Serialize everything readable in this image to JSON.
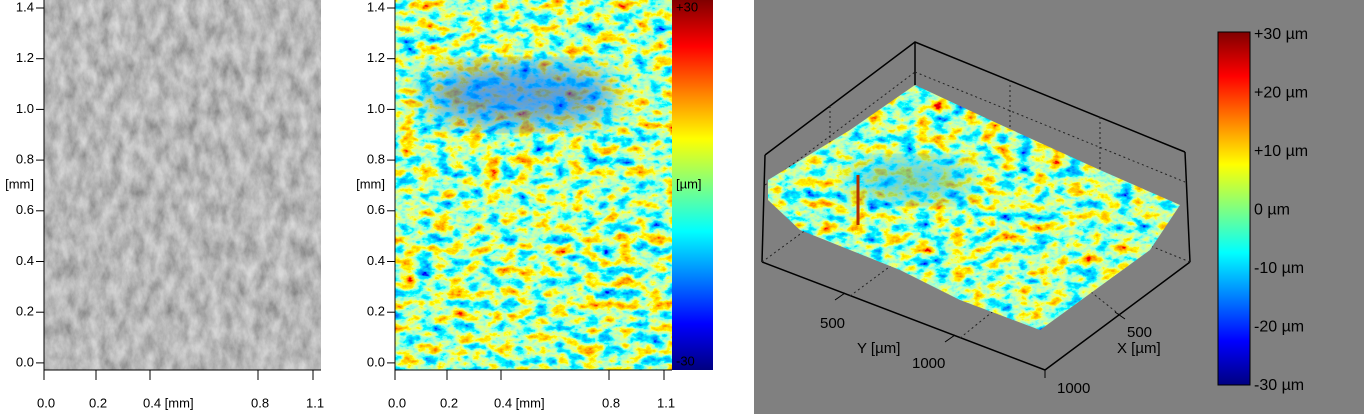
{
  "panels": [
    {
      "y_ticks": [
        "1.4",
        "1.2",
        "1.0",
        "0.8",
        "0.6",
        "0.4",
        "0.2",
        "0.0"
      ],
      "y_unit": "[mm]",
      "x_ticks": [
        "0.0",
        "0.2",
        "0.4 [mm]",
        "0.8",
        "1.1"
      ]
    },
    {
      "y_ticks": [
        "1.4",
        "1.2",
        "1.0",
        "0.8",
        "0.6",
        "0.4",
        "0.2",
        "0.0"
      ],
      "y_unit": "[mm]",
      "x_ticks": [
        "0.0",
        "0.2",
        "0.4 [mm]",
        "0.8",
        "1.1"
      ],
      "colorbar": [
        "+30",
        "[µm]",
        "-30"
      ]
    },
    {
      "colorbar": [
        "+30 µm",
        "+20 µm",
        "+10 µm",
        "0 µm",
        "-10 µm",
        "-20 µm",
        "-30 µm"
      ],
      "y_axis": {
        "ticks": [
          "500",
          "1000"
        ],
        "label": "Y [µm]"
      },
      "x_axis": {
        "ticks": [
          "500",
          "1000"
        ],
        "label": "X [µm]"
      }
    }
  ]
}
